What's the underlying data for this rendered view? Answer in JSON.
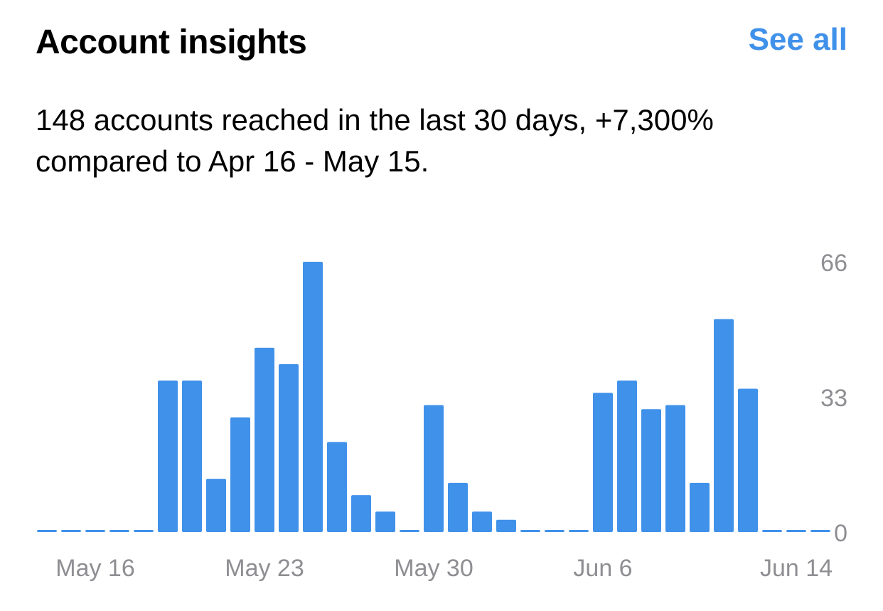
{
  "header": {
    "title": "Account insights",
    "see_all_label": "See all"
  },
  "summary": "148 accounts reached in the last 30 days, +7,300% compared to Apr 16 - May 15.",
  "colors": {
    "accent": "#4091EA",
    "axis_label": "#8E8E93",
    "text": "#000000"
  },
  "chart_data": {
    "type": "bar",
    "categories": [
      "May 14",
      "May 15",
      "May 16",
      "May 17",
      "May 18",
      "May 19",
      "May 20",
      "May 21",
      "May 22",
      "May 23",
      "May 24",
      "May 25",
      "May 26",
      "May 27",
      "May 28",
      "May 29",
      "May 30",
      "May 31",
      "Jun 1",
      "Jun 2",
      "Jun 3",
      "Jun 4",
      "Jun 5",
      "Jun 6",
      "Jun 7",
      "Jun 8",
      "Jun 9",
      "Jun 10",
      "Jun 11",
      "Jun 12",
      "Jun 13",
      "Jun 14",
      "Jun 15"
    ],
    "values": [
      0,
      0,
      0,
      0,
      0,
      37,
      37,
      13,
      28,
      45,
      41,
      66,
      22,
      9,
      5,
      0,
      31,
      12,
      5,
      3,
      0,
      0.5,
      0,
      34,
      37,
      30,
      31,
      12,
      52,
      35,
      0,
      0,
      0
    ],
    "x_tick_labels": [
      "May 16",
      "May 23",
      "May 30",
      "Jun 6",
      "Jun 14"
    ],
    "y_tick_labels": [
      "0",
      "33",
      "66"
    ],
    "y_ticks": [
      0,
      33,
      66
    ],
    "ylim": [
      0,
      66
    ],
    "grid": false,
    "title": "",
    "xlabel": "",
    "ylabel": ""
  }
}
